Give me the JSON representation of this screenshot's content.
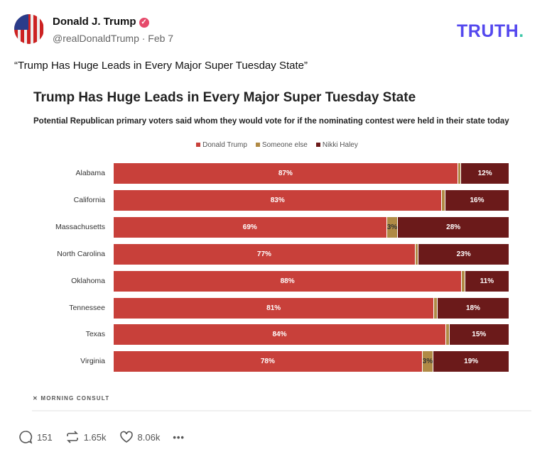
{
  "post": {
    "author_name": "Donald J. Trump",
    "handle": "@realDonaldTrump",
    "date": "Feb 7",
    "handle_line": "@realDonaldTrump · Feb 7",
    "text": "“Trump Has Huge Leads in Every Major Super Tuesday State”",
    "logo": "TRUTH",
    "logo_dot": "."
  },
  "actions": {
    "replies": "151",
    "retruths": "1.65k",
    "likes": "8.06k",
    "more": "•••"
  },
  "colors": {
    "trump": "#c8403a",
    "someone_else": "#b08a45",
    "haley": "#6b1a1a",
    "brand": "#5448ee"
  },
  "chart_data": {
    "type": "bar",
    "stacked": true,
    "orientation": "horizontal",
    "title": "Trump Has Huge Leads in Every Major Super Tuesday State",
    "subtitle": "Potential Republican primary voters said whom they would vote for if the nominating contest were held in their state today",
    "legend_position": "top",
    "source": "MORNING CONSULT",
    "categories": [
      "Alabama",
      "California",
      "Massachusetts",
      "North Carolina",
      "Oklahoma",
      "Tennessee",
      "Texas",
      "Virginia"
    ],
    "series": [
      {
        "name": "Donald Trump",
        "values": [
          87,
          83,
          69,
          77,
          88,
          81,
          84,
          78
        ],
        "labels": [
          "87%",
          "83%",
          "69%",
          "77%",
          "88%",
          "81%",
          "84%",
          "78%"
        ]
      },
      {
        "name": "Someone else",
        "values": [
          1,
          1,
          3,
          1,
          1,
          1,
          1,
          3
        ],
        "labels": [
          "",
          "",
          "3%",
          "",
          "",
          "",
          "",
          "3%"
        ]
      },
      {
        "name": "Nikki Haley",
        "values": [
          12,
          16,
          28,
          23,
          11,
          18,
          15,
          19
        ],
        "labels": [
          "12%",
          "16%",
          "28%",
          "23%",
          "11%",
          "18%",
          "15%",
          "19%"
        ]
      }
    ]
  }
}
